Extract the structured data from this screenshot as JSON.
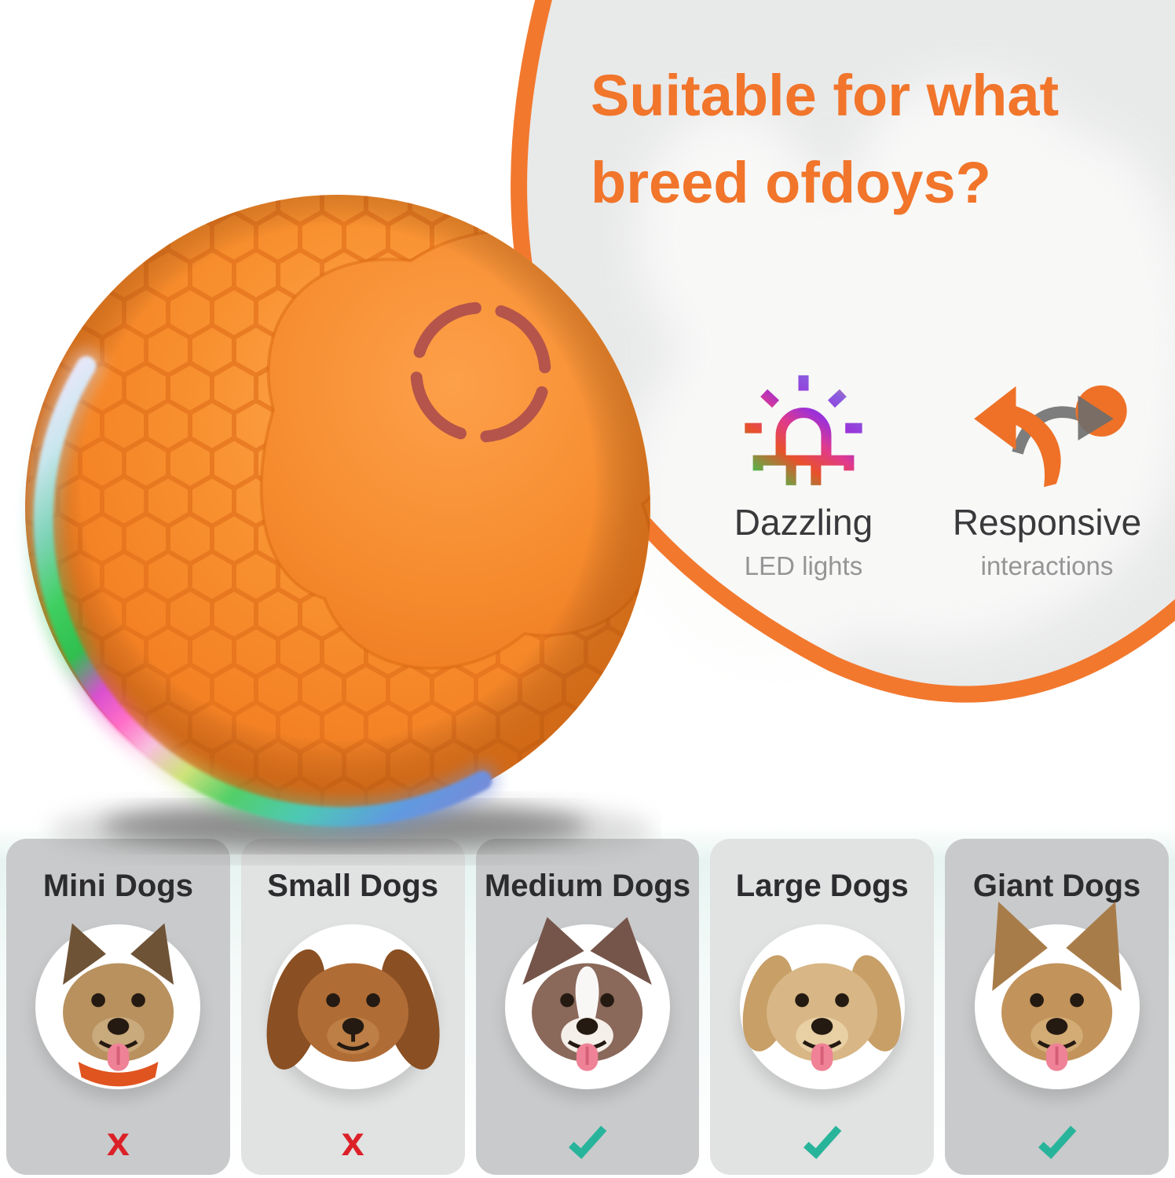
{
  "headline": {
    "line1": "Suitable for what",
    "line2": "breed ofdoys?"
  },
  "features": [
    {
      "label": "Dazzling",
      "sublabel": "LED lights",
      "icon": "led-rainbow-icon"
    },
    {
      "label": "Responsive",
      "sublabel": "interactions",
      "icon": "bounce-arrows-icon"
    }
  ],
  "cards": [
    {
      "label": "Mini Dogs",
      "suitable": false,
      "mark": "x",
      "mark_glyph": "x",
      "dog": {
        "breed": "yorkshire-terrier",
        "fur": "#b8915f",
        "ear": "#6f5336",
        "earStyle": "pointy-small",
        "muzzle": "#c9aa7c",
        "tongue": true,
        "blaze": false,
        "collar": "#e05420"
      }
    },
    {
      "label": "Small Dogs",
      "suitable": false,
      "mark": "x",
      "mark_glyph": "x",
      "dog": {
        "breed": "dachshund",
        "fur": "#b06c35",
        "ear": "#8a4f22",
        "earStyle": "floppy-long",
        "muzzle": "#bd7f46",
        "tongue": false,
        "blaze": false,
        "collar": null
      }
    },
    {
      "label": "Medium Dogs",
      "suitable": true,
      "mark": "check",
      "dog": {
        "breed": "border-collie",
        "fur": "#8a685a",
        "ear": "#75554a",
        "earStyle": "semi",
        "muzzle": "#f4efe8",
        "tongue": true,
        "blaze": true,
        "collar": null
      }
    },
    {
      "label": "Large Dogs",
      "suitable": true,
      "mark": "check",
      "dog": {
        "breed": "golden-retriever",
        "fur": "#d8b685",
        "ear": "#c79f67",
        "earStyle": "floppy",
        "muzzle": "#e8d0a4",
        "tongue": true,
        "blaze": false,
        "collar": null
      }
    },
    {
      "label": "Giant Dogs",
      "suitable": true,
      "mark": "check",
      "dog": {
        "breed": "pit-bull",
        "fur": "#c2935b",
        "ear": "#a87c49",
        "earStyle": "pointy-large",
        "muzzle": "#d2ab75",
        "tongue": true,
        "blaze": false,
        "collar": null
      }
    }
  ],
  "colors": {
    "accent_orange": "#f1752b",
    "arc_orange": "#f2782e",
    "panel_gray": "#e8e9e9",
    "ball_orange": "#f5882f",
    "check_teal": "#28b49b",
    "cross_red": "#dc2027",
    "card_dark": "#c9cacb",
    "card_light": "#e1e2e2"
  }
}
